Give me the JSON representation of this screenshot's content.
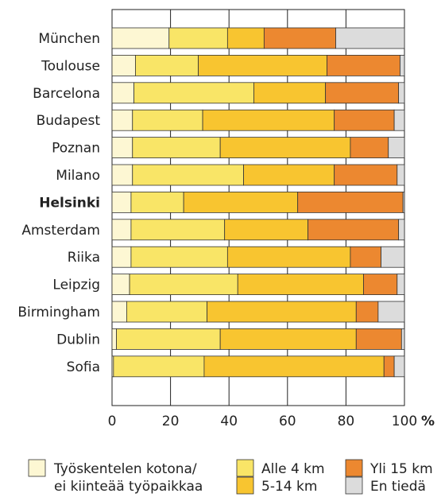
{
  "chart_data": {
    "type": "bar",
    "orientation": "horizontal",
    "stacked": true,
    "categories": [
      "München",
      "Toulouse",
      "Barcelona",
      "Budapest",
      "Poznan",
      "Milano",
      "Helsinki",
      "Amsterdam",
      "Riika",
      "Leipzig",
      "Birmingham",
      "Dublin",
      "Sofia"
    ],
    "highlighted_category": "Helsinki",
    "series": [
      {
        "name": "Työskentelen kotona/ ei kiinteää työpaikkaa",
        "color": "#fdf7d3",
        "values": [
          19.5,
          8,
          7.5,
          7,
          7,
          7,
          6.5,
          6.5,
          6.5,
          6,
          5,
          1.5,
          0.5
        ]
      },
      {
        "name": "Alle 4 km",
        "color": "#f9e567",
        "values": [
          20,
          21.5,
          41,
          24,
          30,
          38,
          18,
          32,
          33,
          37,
          27.5,
          35.5,
          31
        ]
      },
      {
        "name": "5-14 km",
        "color": "#f8c530",
        "values": [
          12.5,
          44,
          24.5,
          45,
          44.5,
          31,
          39,
          28.5,
          42,
          43,
          51,
          46.5,
          61.5
        ]
      },
      {
        "name": "Yli 15 km",
        "color": "#ec8830",
        "values": [
          24.5,
          25,
          25,
          20.5,
          13,
          21.5,
          36,
          31,
          10.5,
          11.5,
          7.5,
          15.5,
          3.5
        ]
      },
      {
        "name": "En tiedä",
        "color": "#dcdcdc",
        "values": [
          23.5,
          1.5,
          2,
          3.5,
          5.5,
          2.5,
          0.5,
          2,
          8,
          2.5,
          9,
          1,
          3.5
        ]
      }
    ],
    "xlim": [
      0,
      100
    ],
    "xticks": [
      "0",
      "20",
      "40",
      "60",
      "80",
      "100"
    ],
    "xunit": "%",
    "legend_position": "bottom",
    "legend_lines": [
      [
        "Työskentelen kotona/",
        "ei kiinteää työpaikkaa"
      ],
      [
        "Alle 4 km"
      ],
      [
        "5-14 km"
      ],
      [
        "Yli 15 km"
      ],
      [
        "En tiedä"
      ]
    ]
  }
}
